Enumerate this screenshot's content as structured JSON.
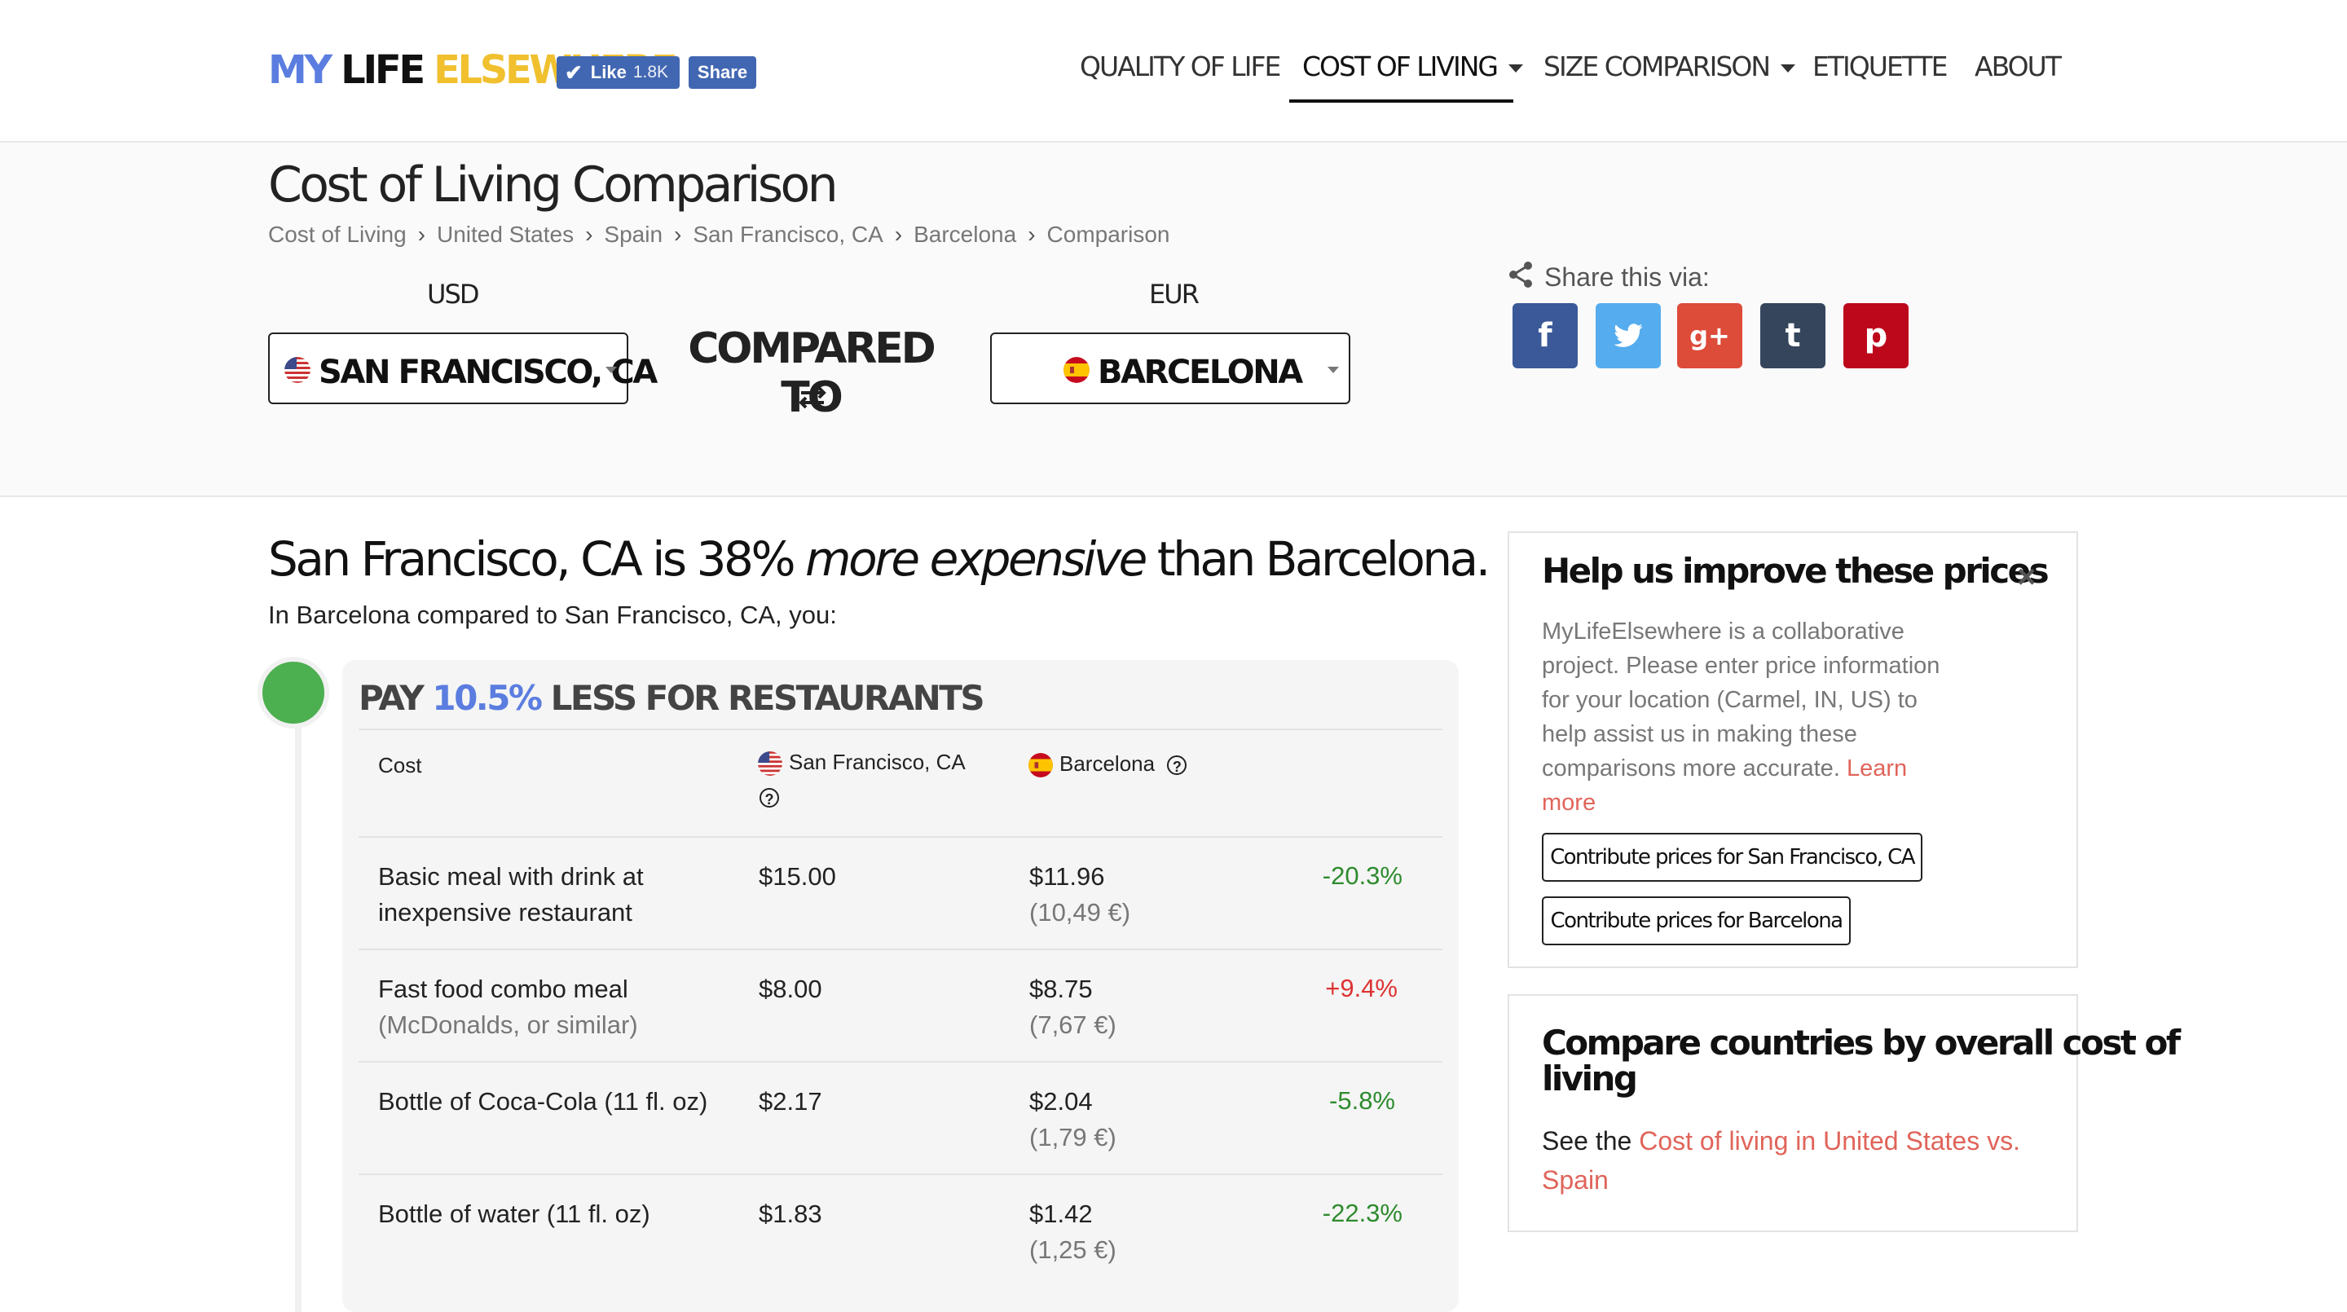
{
  "header": {
    "logo": {
      "part1": "MY",
      "part2": "LIFE",
      "part3": "ELSEWHERE"
    },
    "fb_like": {
      "label": "Like",
      "count": "1.8K"
    },
    "fb_share": "Share",
    "nav": [
      {
        "label": "QUALITY OF LIFE"
      },
      {
        "label": "COST OF LIVING"
      },
      {
        "label": "SIZE COMPARISON"
      },
      {
        "label": "ETIQUETTE"
      },
      {
        "label": "ABOUT"
      }
    ]
  },
  "page": {
    "title": "Cost of Living Comparison",
    "breadcrumb": [
      "Cost of Living",
      "United States",
      "Spain",
      "San Francisco, CA",
      "Barcelona",
      "Comparison"
    ],
    "breadcrumb_sep": "›"
  },
  "selector": {
    "left_currency": "USD",
    "right_currency": "EUR",
    "left_city": "SAN FRANCISCO, CA",
    "right_city": "BARCELONA",
    "compared_to": "COMPARED TO"
  },
  "share": {
    "label": "Share this via:",
    "buttons": [
      {
        "name": "facebook",
        "glyph": "f",
        "color": "#3b5998"
      },
      {
        "name": "twitter",
        "glyph": "t",
        "color": "#55acee"
      },
      {
        "name": "google-plus",
        "glyph": "g+",
        "color": "#dd4b39"
      },
      {
        "name": "tumblr",
        "glyph": "t",
        "color": "#35465c"
      },
      {
        "name": "pinterest",
        "glyph": "p",
        "color": "#bd081c"
      }
    ]
  },
  "summary": {
    "headline_pre": "San Francisco, CA is 38% ",
    "headline_em": "more expensive",
    "headline_post": " than Barcelona.",
    "subline": "In Barcelona compared to San Francisco, CA, you:"
  },
  "restaurants": {
    "title_pre": "PAY ",
    "title_pct": "10.5%",
    "title_post": " LESS FOR RESTAURANTS",
    "col_cost": "Cost",
    "col_a": "San Francisco, CA",
    "col_b": "Barcelona",
    "qmark": "?",
    "rows": [
      {
        "item": "Basic meal with drink at",
        "item2": "inexpensive restaurant",
        "a": "$15.00",
        "b": "$11.96",
        "b_eur": "(10,49 €)",
        "diff": "-20.3%"
      },
      {
        "item": "Fast food combo meal",
        "item2": "(McDonalds, or similar)",
        "a": "$8.00",
        "b": "$8.75",
        "b_eur": "(7,67 €)",
        "diff": "+9.4%"
      },
      {
        "item": "Bottle of Coca-Cola (11 fl. oz)",
        "item2": "",
        "a": "$2.17",
        "b": "$2.04",
        "b_eur": "(1,79 €)",
        "diff": "-5.8%"
      },
      {
        "item": "Bottle of water (11 fl. oz)",
        "item2": "",
        "a": "$1.83",
        "b": "$1.42",
        "b_eur": "(1,25 €)",
        "diff": "-22.3%"
      }
    ]
  },
  "improve_box": {
    "title": "Help us improve these prices",
    "close": "×",
    "text_lines": [
      "MyLifeElsewhere is a collaborative",
      "project. Please enter price information",
      "for your location (Carmel, IN, US) to",
      "help assist us in making these",
      "comparisons more accurate. "
    ],
    "learn": "Learn",
    "more": "more",
    "btn_a": "Contribute prices for San Francisco, CA",
    "btn_b": "Contribute prices for Barcelona"
  },
  "compare_box": {
    "title_line1": "Compare countries by overall cost of",
    "title_line2": "living",
    "text_pre": "See the ",
    "link_line1": "Cost of living in United States vs.",
    "link_line2": "Spain"
  }
}
